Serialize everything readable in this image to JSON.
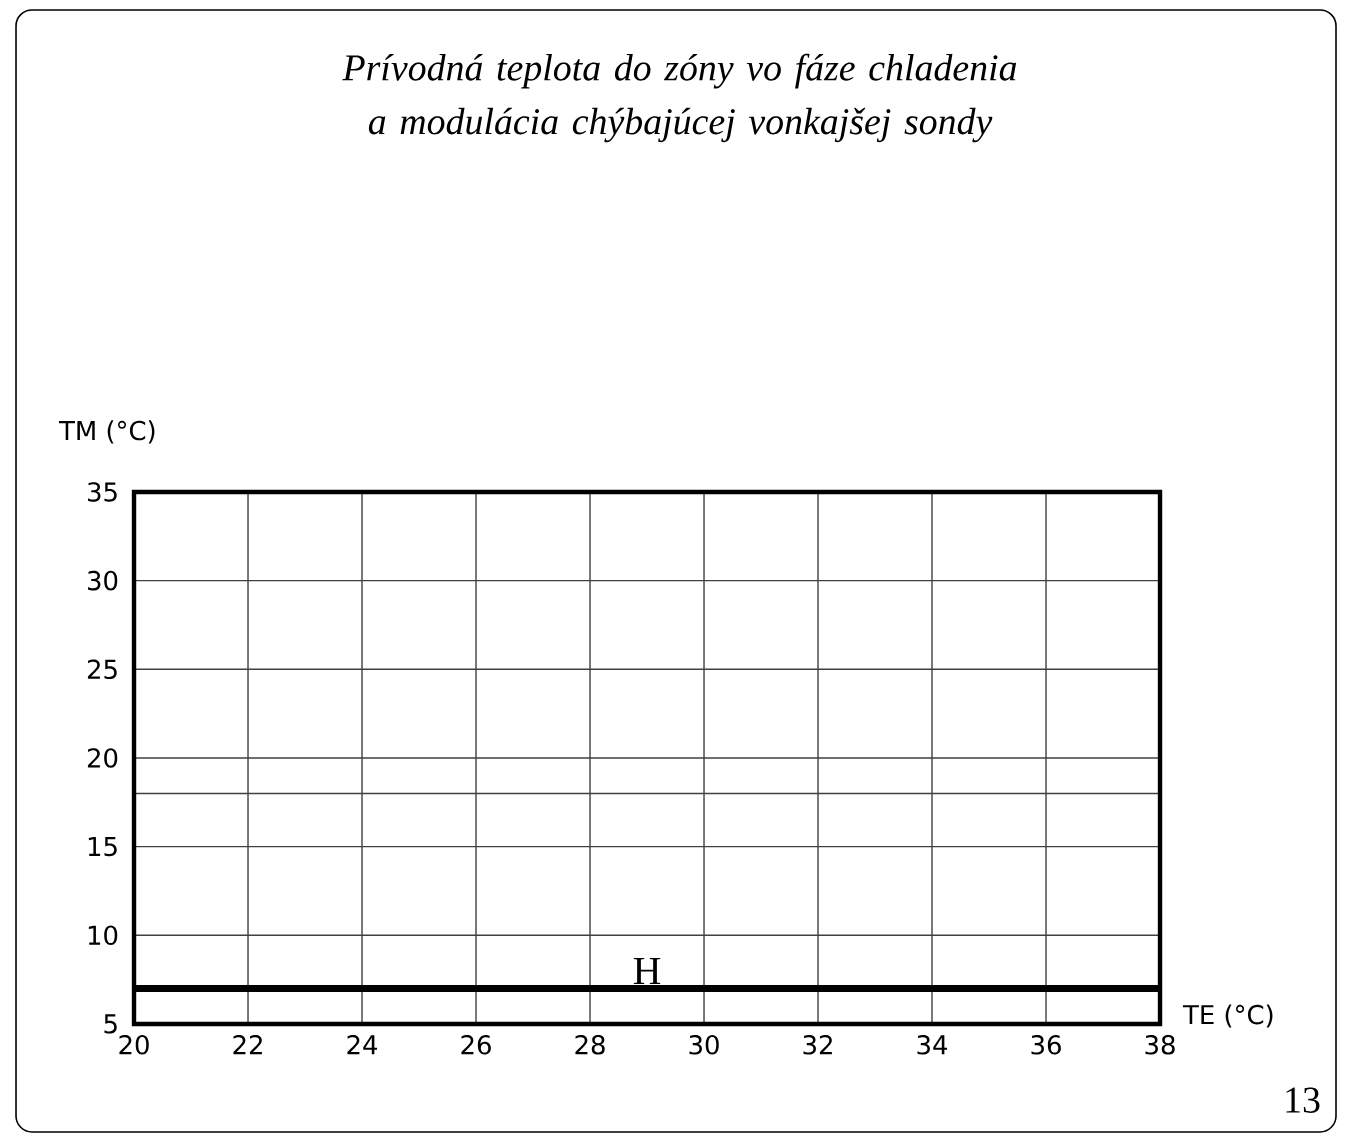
{
  "chart_data": {
    "type": "line",
    "title": "Prívodná teplota do zóny vo fáze chladenia a modulácia chýbajúcej vonkajšej sondy",
    "xlabel": "TE (°C)",
    "ylabel": "TM (°C)",
    "xlim": [
      20,
      38
    ],
    "ylim": [
      5,
      35
    ],
    "xticks": [
      20,
      22,
      24,
      26,
      28,
      30,
      32,
      34,
      36,
      38
    ],
    "yticks": [
      5,
      10,
      15,
      {
        "value": 18,
        "label": null
      },
      20,
      25,
      30,
      35
    ],
    "grid": true,
    "marker": "none",
    "line_style": "solid",
    "series": [
      {
        "name": "H",
        "color": "#000000",
        "x": [
          20,
          38
        ],
        "values": [
          7,
          7
        ]
      }
    ],
    "annotations": [
      "13"
    ]
  }
}
